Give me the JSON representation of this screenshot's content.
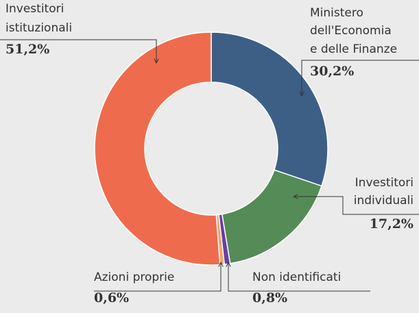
{
  "chart_data": {
    "type": "donut",
    "categories": [
      [
        "Ministero",
        "dell'Economia",
        "e delle Finanze"
      ],
      [
        "Investitori",
        "individuali"
      ],
      [
        "Non identificati"
      ],
      [
        "Azioni proprie"
      ],
      [
        "Investitori",
        "istituzionali"
      ]
    ],
    "values": [
      30.2,
      17.2,
      0.8,
      0.6,
      51.2
    ],
    "value_labels": [
      "30,2%",
      "17,2%",
      "0,8%",
      "0,6%",
      "51,2%"
    ],
    "colors": [
      "#3d5f85",
      "#558b57",
      "#6b3fa0",
      "#f2a36b",
      "#ee6c4d"
    ]
  }
}
